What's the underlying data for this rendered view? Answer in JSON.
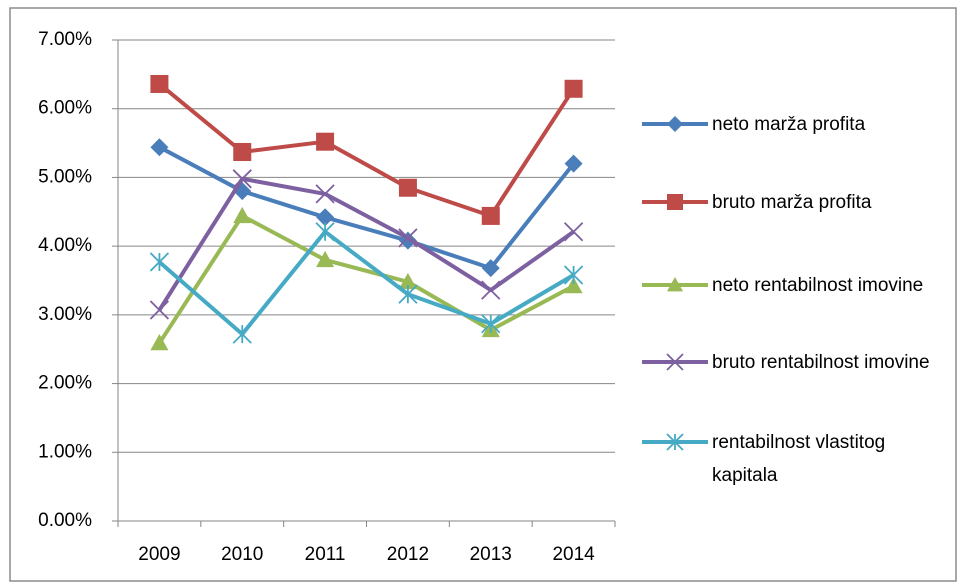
{
  "chart_data": {
    "type": "line",
    "categories": [
      "2009",
      "2010",
      "2011",
      "2012",
      "2013",
      "2014"
    ],
    "series": [
      {
        "name": "neto marža profita",
        "color": "#4a7ebb",
        "marker": "diamond",
        "values": [
          5.44,
          4.8,
          4.42,
          4.08,
          3.68,
          5.2
        ]
      },
      {
        "name": "bruto marža profita",
        "color": "#be4b48",
        "marker": "square",
        "values": [
          6.36,
          5.37,
          5.52,
          4.85,
          4.44,
          6.29
        ]
      },
      {
        "name": "neto rentabilnost imovine",
        "color": "#98b954",
        "marker": "triangle",
        "values": [
          2.59,
          4.44,
          3.8,
          3.48,
          2.78,
          3.42
        ]
      },
      {
        "name": "bruto rentabilnost imovine",
        "color": "#7d60a0",
        "marker": "x",
        "values": [
          3.07,
          4.98,
          4.76,
          4.12,
          3.36,
          4.21
        ]
      },
      {
        "name": "rentabilnost vlastitog kapitala",
        "color": "#46aac5",
        "marker": "star",
        "values": [
          3.77,
          2.72,
          4.21,
          3.3,
          2.87,
          3.58
        ]
      }
    ],
    "ylim": [
      0,
      7
    ],
    "yticks": [
      {
        "value": 0,
        "label": "0.00%"
      },
      {
        "value": 1,
        "label": "1.00%"
      },
      {
        "value": 2,
        "label": "2.00%"
      },
      {
        "value": 3,
        "label": "3.00%"
      },
      {
        "value": 4,
        "label": "4.00%"
      },
      {
        "value": 5,
        "label": "5.00%"
      },
      {
        "value": 6,
        "label": "6.00%"
      },
      {
        "value": 7,
        "label": "7.00%"
      }
    ],
    "grid": true,
    "legend": "right"
  }
}
